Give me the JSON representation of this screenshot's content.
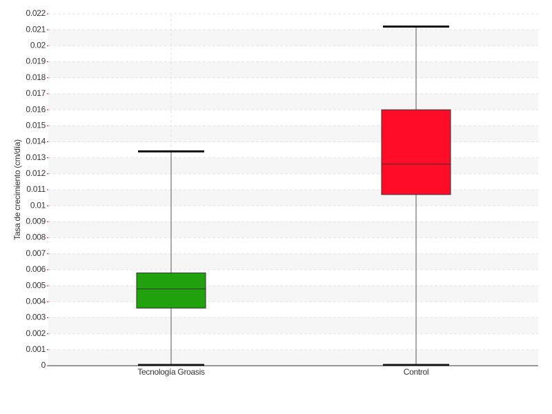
{
  "chart_data": {
    "type": "box",
    "y_label": "Tasa de crecimiento (cm/día)",
    "categories": [
      "Tecnología Groasis",
      "Control"
    ],
    "boxes": [
      {
        "min": 0,
        "q1": 0.0036,
        "median": 0.0048,
        "q3": 0.0058,
        "max": 0.0134,
        "color": "#22a10f"
      },
      {
        "min": 0,
        "q1": 0.0107,
        "median": 0.0126,
        "q3": 0.016,
        "max": 0.0212,
        "color": "#ff0c28"
      }
    ],
    "ylim": [
      0,
      0.022
    ],
    "yticks": [
      0,
      0.001,
      0.002,
      0.003,
      0.004,
      0.005,
      0.006,
      0.007,
      0.008,
      0.009,
      0.01,
      0.011,
      0.012,
      0.013,
      0.014,
      0.015,
      0.016,
      0.017,
      0.018,
      0.019,
      0.02,
      0.021,
      0.022
    ],
    "grid": true
  }
}
